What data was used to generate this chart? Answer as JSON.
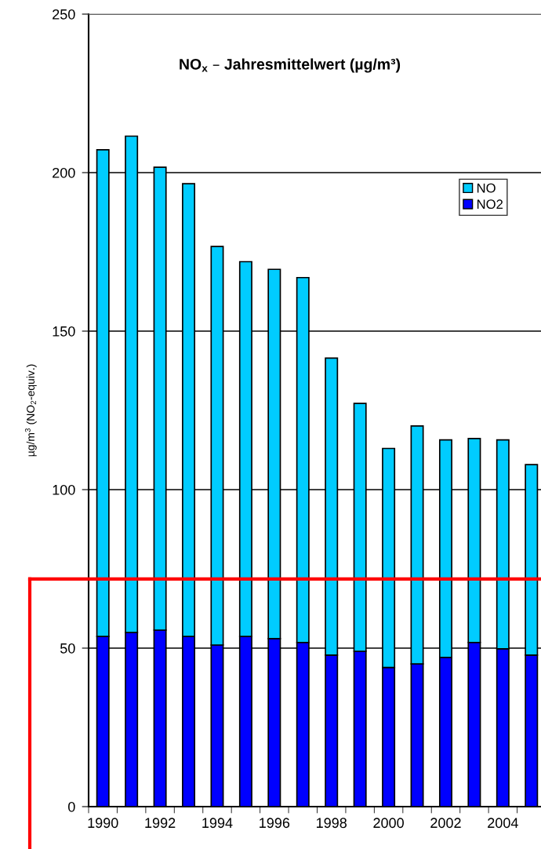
{
  "chart_data": {
    "type": "bar",
    "stacked": true,
    "title": "NO$_{x}$ – Jahresmittelwert (µg/m³)",
    "ylabel": "µg/m$^{3}$ (NO$_{2}$-equiv.)",
    "categories": [
      "1990",
      null,
      "1992",
      null,
      "1994",
      null,
      "1996",
      null,
      "1998",
      null,
      "2000",
      null,
      "2002",
      null,
      "2004",
      null
    ],
    "series": [
      {
        "name": "NO2",
        "color": "#0000ff",
        "values": [
          53.7,
          54.9,
          55.7,
          53.7,
          51.0,
          53.7,
          53.0,
          51.8,
          47.8,
          49.0,
          43.9,
          45.0,
          47.1,
          51.8,
          49.8,
          47.8
        ]
      },
      {
        "name": "NO",
        "color": "#00ccff",
        "values": [
          153.5,
          156.6,
          146.0,
          142.8,
          125.7,
          118.2,
          116.5,
          115.1,
          93.7,
          78.2,
          69.1,
          75.1,
          68.6,
          64.3,
          65.9,
          60.1
        ]
      }
    ],
    "ylim": [
      0,
      250
    ],
    "yticks": [
      0,
      50,
      100,
      150,
      200,
      250
    ],
    "ref_lines": [
      {
        "axis": "y",
        "value": 71.8,
        "color": "#ff0000"
      }
    ],
    "grid": "y",
    "legend": "top right"
  }
}
